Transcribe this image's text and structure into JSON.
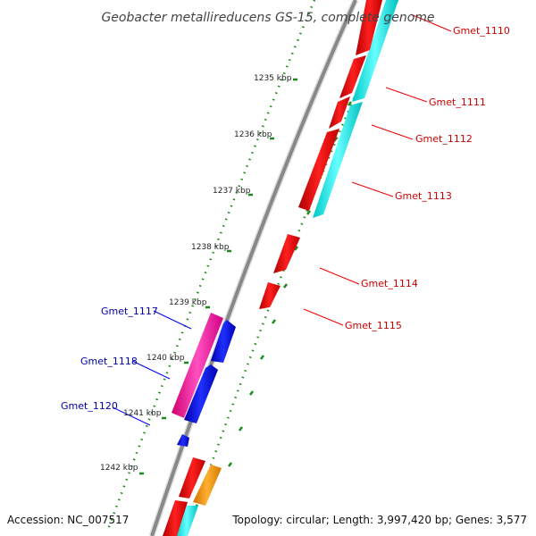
{
  "title": "Geobacter metallireducens GS-15, complete genome",
  "footer": {
    "accession": "Accession: NC_007517",
    "summary": "Topology: circular; Length: 3,997,420 bp; Genes: 3,577"
  },
  "colors": {
    "forward_gene": "#ee0000",
    "forward_gene_label": "#cc0000",
    "cds_track": "#11eeee",
    "reverse_gene": "#0000ee",
    "reverse_gene_label": "#0000aa",
    "pink_track": "#ff1aa8",
    "orange_track": "#ff9900",
    "backbone": "#888888",
    "tick": "#1a8a1a"
  },
  "kbp_ticks": [
    "1235 kbp",
    "1236 kbp",
    "1237 kbp",
    "1238 kbp",
    "1239 kbp",
    "1240 kbp",
    "1241 kbp",
    "1242 kbp"
  ],
  "forward_genes": [
    "Gmet_1110",
    "Gmet_1111",
    "Gmet_1112",
    "Gmet_1113",
    "Gmet_1114",
    "Gmet_1115"
  ],
  "reverse_genes": [
    "Gmet_1117",
    "Gmet_1118",
    "Gmet_1120"
  ]
}
